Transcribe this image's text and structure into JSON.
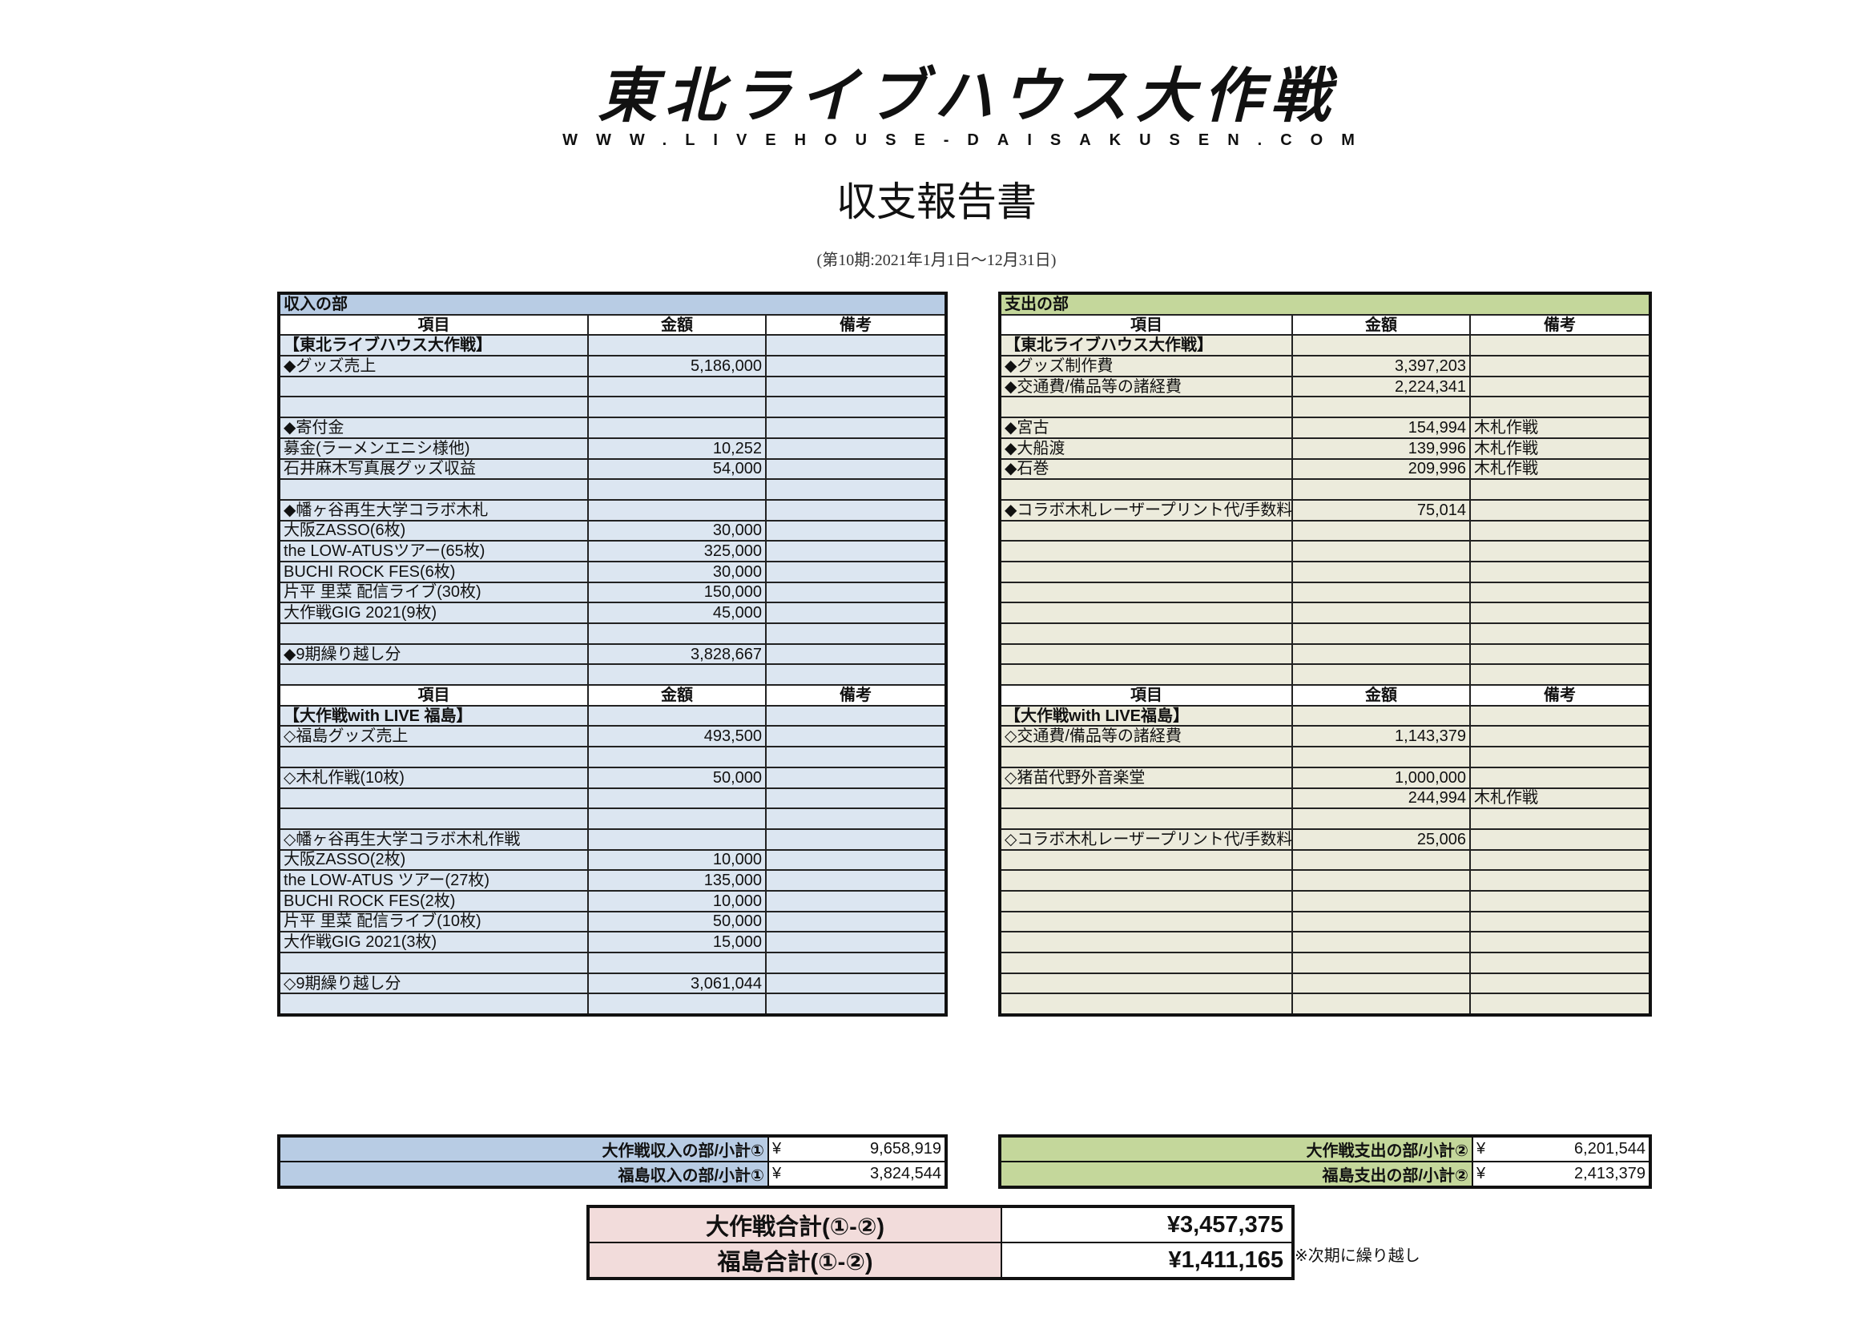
{
  "header": {
    "logo_text": "東北ライブハウス大作戦",
    "url": "WWW.LIVEHOUSE-DAISAKUSEN.COM",
    "title": "収支報告書",
    "period": "(第10期:2021年1月1日～12月31日)"
  },
  "colors": {
    "income_header": "#b8cce4",
    "income_rows": "#dce6f1",
    "expense_header": "#c4d79b",
    "expense_rows": "#ecebdc",
    "total_label": "#f2dcdb"
  },
  "columns": [
    "項目",
    "金額",
    "備考"
  ],
  "income": {
    "section_title": "収入の部",
    "block1": [
      {
        "item": "【東北ライブハウス大作戦】",
        "amount": "",
        "note": "",
        "bold": true
      },
      {
        "item": "◆グッズ売上",
        "amount": "5,186,000",
        "note": ""
      },
      {
        "item": "",
        "amount": "",
        "note": ""
      },
      {
        "item": "",
        "amount": "",
        "note": ""
      },
      {
        "item": "◆寄付金",
        "amount": "",
        "note": ""
      },
      {
        "item": "募金(ラーメンエニシ様他)",
        "amount": "10,252",
        "note": ""
      },
      {
        "item": "石井麻木写真展グッズ収益",
        "amount": "54,000",
        "note": ""
      },
      {
        "item": "",
        "amount": "",
        "note": ""
      },
      {
        "item": "◆幡ヶ谷再生大学コラボ木札",
        "amount": "",
        "note": ""
      },
      {
        "item": "大阪ZASSO(6枚)",
        "amount": "30,000",
        "note": ""
      },
      {
        "item": "the LOW-ATUSツアー(65枚)",
        "amount": "325,000",
        "note": ""
      },
      {
        "item": "BUCHI ROCK FES(6枚)",
        "amount": "30,000",
        "note": ""
      },
      {
        "item": "片平 里菜 配信ライブ(30枚)",
        "amount": "150,000",
        "note": ""
      },
      {
        "item": "大作戦GIG 2021(9枚)",
        "amount": "45,000",
        "note": ""
      },
      {
        "item": "",
        "amount": "",
        "note": ""
      },
      {
        "item": "◆9期繰り越し分",
        "amount": "3,828,667",
        "note": ""
      },
      {
        "item": "",
        "amount": "",
        "note": ""
      }
    ],
    "block2": [
      {
        "item": "【大作戦with LIVE 福島】",
        "amount": "",
        "note": "",
        "bold": true
      },
      {
        "item": "◇福島グッズ売上",
        "amount": "493,500",
        "note": ""
      },
      {
        "item": "",
        "amount": "",
        "note": ""
      },
      {
        "item": "◇木札作戦(10枚)",
        "amount": "50,000",
        "note": ""
      },
      {
        "item": "",
        "amount": "",
        "note": ""
      },
      {
        "item": "",
        "amount": "",
        "note": ""
      },
      {
        "item": "◇幡ヶ谷再生大学コラボ木札作戦",
        "amount": "",
        "note": ""
      },
      {
        "item": "大阪ZASSO(2枚)",
        "amount": "10,000",
        "note": ""
      },
      {
        "item": "the LOW-ATUS ツアー(27枚)",
        "amount": "135,000",
        "note": ""
      },
      {
        "item": "BUCHI ROCK FES(2枚)",
        "amount": "10,000",
        "note": ""
      },
      {
        "item": "片平 里菜 配信ライブ(10枚)",
        "amount": "50,000",
        "note": ""
      },
      {
        "item": "大作戦GIG 2021(3枚)",
        "amount": "15,000",
        "note": ""
      },
      {
        "item": "",
        "amount": "",
        "note": ""
      },
      {
        "item": "◇9期繰り越し分",
        "amount": "3,061,044",
        "note": ""
      },
      {
        "item": "",
        "amount": "",
        "note": ""
      }
    ]
  },
  "expense": {
    "section_title": "支出の部",
    "block1": [
      {
        "item": "【東北ライブハウス大作戦】",
        "amount": "",
        "note": "",
        "bold": true
      },
      {
        "item": "◆グッズ制作費",
        "amount": "3,397,203",
        "note": ""
      },
      {
        "item": "◆交通費/備品等の諸経費",
        "amount": "2,224,341",
        "note": ""
      },
      {
        "item": "",
        "amount": "",
        "note": ""
      },
      {
        "item": "◆宮古",
        "amount": "154,994",
        "note": "木札作戦"
      },
      {
        "item": "◆大船渡",
        "amount": "139,996",
        "note": "木札作戦"
      },
      {
        "item": "◆石巻",
        "amount": "209,996",
        "note": "木札作戦"
      },
      {
        "item": "",
        "amount": "",
        "note": ""
      },
      {
        "item": "◆コラボ木札レーザープリント代/手数料",
        "amount": "75,014",
        "note": "",
        "small": true
      },
      {
        "item": "",
        "amount": "",
        "note": ""
      },
      {
        "item": "",
        "amount": "",
        "note": ""
      },
      {
        "item": "",
        "amount": "",
        "note": ""
      },
      {
        "item": "",
        "amount": "",
        "note": ""
      },
      {
        "item": "",
        "amount": "",
        "note": ""
      },
      {
        "item": "",
        "amount": "",
        "note": ""
      },
      {
        "item": "",
        "amount": "",
        "note": ""
      },
      {
        "item": "",
        "amount": "",
        "note": ""
      }
    ],
    "block2": [
      {
        "item": "【大作戦with LIVE福島】",
        "amount": "",
        "note": "",
        "bold": true
      },
      {
        "item": "◇交通費/備品等の諸経費",
        "amount": "1,143,379",
        "note": ""
      },
      {
        "item": "",
        "amount": "",
        "note": ""
      },
      {
        "item": "◇猪苗代野外音楽堂",
        "amount": "1,000,000",
        "note": ""
      },
      {
        "item": "",
        "amount": "244,994",
        "note": "木札作戦"
      },
      {
        "item": "",
        "amount": "",
        "note": ""
      },
      {
        "item": "◇コラボ木札レーザープリント代/手数料",
        "amount": "25,006",
        "note": "",
        "small": true
      },
      {
        "item": "",
        "amount": "",
        "note": ""
      },
      {
        "item": "",
        "amount": "",
        "note": ""
      },
      {
        "item": "",
        "amount": "",
        "note": ""
      },
      {
        "item": "",
        "amount": "",
        "note": ""
      },
      {
        "item": "",
        "amount": "",
        "note": ""
      },
      {
        "item": "",
        "amount": "",
        "note": ""
      },
      {
        "item": "",
        "amount": "",
        "note": ""
      },
      {
        "item": "",
        "amount": "",
        "note": ""
      }
    ]
  },
  "subtotals": {
    "income": [
      {
        "label": "大作戦収入の部/小計①",
        "currency": "¥",
        "value": "9,658,919"
      },
      {
        "label": "福島収入の部/小計①",
        "currency": "¥",
        "value": "3,824,544"
      }
    ],
    "expense": [
      {
        "label": "大作戦支出の部/小計②",
        "currency": "¥",
        "value": "6,201,544"
      },
      {
        "label": "福島支出の部/小計②",
        "currency": "¥",
        "value": "2,413,379"
      }
    ]
  },
  "totals": [
    {
      "label": "大作戦合計(①-②)",
      "value": "¥3,457,375"
    },
    {
      "label": "福島合計(①-②)",
      "value": "¥1,411,165"
    }
  ],
  "carryover_note": "※次期に繰り越し"
}
